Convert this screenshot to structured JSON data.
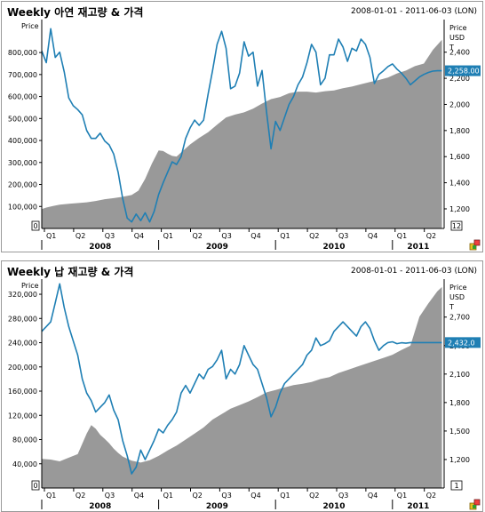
{
  "colors": {
    "price_line": "#1f7fb4",
    "inventory_fill": "#999999",
    "last_value_tag": "#1f7fb4",
    "axis": "#000000"
  },
  "chart_data": [
    {
      "type": "area",
      "title": "Weekly 아연 재고량 & 가격",
      "date_range": "2008-01-01 - 2011-06-03 (LON)",
      "left_axis_label": "Price",
      "right_axis_label_lines": [
        "Price",
        "USD",
        "T"
      ],
      "left_axis": {
        "ticks": [
          100000,
          200000,
          300000,
          400000,
          500000,
          600000,
          700000,
          800000
        ],
        "tick_labels": [
          "100,000",
          "200,000",
          "300,000",
          "400,000",
          "500,000",
          "600,000",
          "700,000",
          "800,000"
        ],
        "zero_label": "0",
        "range": [
          0,
          950000
        ]
      },
      "right_axis": {
        "ticks": [
          1200,
          1400,
          1600,
          1800,
          2000,
          2200,
          2400
        ],
        "tick_labels": [
          "1,200",
          "1,400",
          "1,600",
          "1,800",
          "2,000",
          "2,200",
          "2,400"
        ],
        "bottom_label": "12",
        "range": [
          1050,
          2650
        ]
      },
      "last_value": "2,258.00",
      "quarters": [
        "Q1",
        "Q2",
        "Q3",
        "Q4",
        "Q1",
        "Q2",
        "Q3",
        "Q4",
        "Q1",
        "Q2",
        "Q3",
        "Q4",
        "Q1",
        "Q2"
      ],
      "years": [
        "2008",
        "2009",
        "2010",
        "2011"
      ],
      "series": [
        {
          "kind": "inventory-area",
          "x": [
            0,
            2,
            5,
            8,
            12,
            17,
            20,
            24,
            28,
            32,
            36,
            40,
            43,
            46,
            49,
            52,
            54,
            56,
            58,
            60,
            63,
            66,
            70,
            74,
            78,
            82,
            86,
            90,
            94,
            98,
            102,
            106,
            110,
            114,
            118,
            122,
            126,
            130,
            134,
            138,
            142,
            146,
            150,
            154,
            158,
            162,
            166,
            170,
            174,
            178
          ],
          "values": [
            88000,
            95000,
            102000,
            108000,
            112000,
            116000,
            119000,
            125000,
            133000,
            138000,
            144000,
            152000,
            172000,
            225000,
            295000,
            355000,
            352000,
            340000,
            330000,
            327000,
            355000,
            382000,
            412000,
            438000,
            472000,
            505000,
            518000,
            528000,
            545000,
            568000,
            588000,
            598000,
            615000,
            622000,
            622000,
            618000,
            624000,
            628000,
            638000,
            645000,
            656000,
            666000,
            675000,
            686000,
            705000,
            718000,
            738000,
            750000,
            812000,
            858000
          ]
        },
        {
          "kind": "price-line",
          "x": [
            0,
            2,
            4,
            6,
            8,
            10,
            12,
            14,
            16,
            18,
            20,
            22,
            24,
            26,
            28,
            30,
            32,
            34,
            36,
            38,
            40,
            42,
            44,
            46,
            48,
            50,
            52,
            54,
            56,
            58,
            60,
            62,
            64,
            66,
            68,
            70,
            72,
            74,
            76,
            78,
            80,
            82,
            84,
            86,
            88,
            90,
            92,
            94,
            96,
            98,
            100,
            102,
            104,
            106,
            108,
            110,
            112,
            114,
            116,
            118,
            120,
            122,
            124,
            126,
            128,
            130,
            132,
            134,
            136,
            138,
            140,
            142,
            144,
            146,
            148,
            150,
            152,
            154,
            156,
            158,
            160,
            162,
            164,
            166,
            168,
            170,
            172,
            174,
            176,
            178
          ],
          "values": [
            2410,
            2320,
            2580,
            2360,
            2400,
            2250,
            2050,
            1990,
            1960,
            1920,
            1800,
            1740,
            1740,
            1780,
            1720,
            1690,
            1620,
            1480,
            1280,
            1130,
            1100,
            1160,
            1110,
            1170,
            1100,
            1180,
            1310,
            1400,
            1480,
            1560,
            1540,
            1600,
            1740,
            1820,
            1880,
            1840,
            1880,
            2080,
            2260,
            2460,
            2560,
            2430,
            2120,
            2140,
            2240,
            2480,
            2370,
            2400,
            2140,
            2260,
            1940,
            1660,
            1870,
            1800,
            1900,
            2000,
            2060,
            2150,
            2210,
            2320,
            2460,
            2400,
            2150,
            2200,
            2380,
            2380,
            2500,
            2440,
            2330,
            2430,
            2410,
            2500,
            2460,
            2360,
            2160,
            2230,
            2258,
            2290,
            2310,
            2270,
            2240,
            2200,
            2150,
            2180,
            2210,
            2230,
            2245,
            2255,
            2258,
            2258
          ]
        }
      ]
    },
    {
      "type": "area",
      "title": "Weekly 납 재고량 & 가격",
      "date_range": "2008-01-01 - 2011-06-03 (LON)",
      "left_axis_label": "Price",
      "right_axis_label_lines": [
        "Price",
        "USD",
        "T"
      ],
      "left_axis": {
        "ticks": [
          40000,
          80000,
          120000,
          160000,
          200000,
          240000,
          280000,
          320000
        ],
        "tick_labels": [
          "40,000",
          "80,000",
          "120,000",
          "160,000",
          "200,000",
          "240,000",
          "280,000",
          "320,000"
        ],
        "zero_label": "0",
        "range": [
          0,
          345000
        ]
      },
      "right_axis": {
        "ticks": [
          1200,
          1500,
          1800,
          2100,
          2400,
          2700
        ],
        "tick_labels": [
          "1,200",
          "1,500",
          "1,800",
          "2,100",
          "2,400",
          "2,700"
        ],
        "bottom_label": "1",
        "range": [
          900,
          3100
        ]
      },
      "last_value": "2,432.0",
      "quarters": [
        "Q1",
        "Q2",
        "Q3",
        "Q4",
        "Q1",
        "Q2",
        "Q3",
        "Q4",
        "Q1",
        "Q2",
        "Q3",
        "Q4",
        "Q1",
        "Q2"
      ],
      "years": [
        "2008",
        "2009",
        "2010",
        "2011"
      ],
      "series": [
        {
          "kind": "inventory-area",
          "x": [
            0,
            4,
            8,
            12,
            16,
            20,
            22,
            24,
            26,
            28,
            30,
            32,
            34,
            36,
            40,
            44,
            48,
            52,
            56,
            60,
            64,
            68,
            72,
            76,
            80,
            84,
            88,
            92,
            96,
            100,
            104,
            108,
            112,
            116,
            120,
            124,
            128,
            132,
            136,
            140,
            144,
            148,
            152,
            156,
            160,
            164,
            168,
            172,
            176,
            178
          ],
          "values": [
            48000,
            47000,
            44000,
            50000,
            56000,
            90000,
            104000,
            98000,
            88000,
            81000,
            74000,
            65000,
            58000,
            52000,
            45000,
            42000,
            46000,
            53000,
            62000,
            70000,
            80000,
            90000,
            100000,
            113000,
            122000,
            131000,
            137000,
            143000,
            150000,
            158000,
            162000,
            166000,
            170000,
            172000,
            175000,
            180000,
            183000,
            190000,
            195000,
            200000,
            205000,
            210000,
            215000,
            220000,
            228000,
            235000,
            283000,
            305000,
            325000,
            332000
          ]
        },
        {
          "kind": "price-line",
          "x": [
            0,
            2,
            4,
            6,
            8,
            10,
            12,
            14,
            16,
            18,
            20,
            22,
            24,
            26,
            28,
            30,
            32,
            34,
            36,
            38,
            40,
            42,
            44,
            46,
            48,
            50,
            52,
            54,
            56,
            58,
            60,
            62,
            64,
            66,
            68,
            70,
            72,
            74,
            76,
            78,
            80,
            82,
            84,
            86,
            88,
            90,
            92,
            94,
            96,
            98,
            100,
            102,
            104,
            106,
            108,
            110,
            112,
            114,
            116,
            118,
            120,
            122,
            124,
            126,
            128,
            130,
            132,
            134,
            136,
            138,
            140,
            142,
            144,
            146,
            148,
            150,
            152,
            154,
            156,
            158,
            160,
            162,
            164,
            166,
            168,
            170,
            172,
            174,
            176,
            178
          ],
          "values": [
            2550,
            2600,
            2650,
            2850,
            3050,
            2800,
            2600,
            2450,
            2300,
            2050,
            1900,
            1820,
            1700,
            1750,
            1800,
            1880,
            1720,
            1620,
            1400,
            1240,
            1050,
            1120,
            1300,
            1200,
            1300,
            1400,
            1520,
            1480,
            1560,
            1620,
            1700,
            1900,
            1980,
            1900,
            2000,
            2100,
            2050,
            2150,
            2180,
            2250,
            2350,
            2050,
            2150,
            2100,
            2200,
            2400,
            2300,
            2200,
            2150,
            2000,
            1850,
            1650,
            1750,
            1900,
            2000,
            2050,
            2100,
            2150,
            2200,
            2300,
            2350,
            2480,
            2400,
            2420,
            2450,
            2550,
            2600,
            2650,
            2600,
            2550,
            2500,
            2600,
            2650,
            2580,
            2450,
            2350,
            2400,
            2432,
            2440,
            2420,
            2430,
            2425,
            2432,
            2432,
            2432,
            2432,
            2432,
            2432,
            2432,
            2432
          ]
        }
      ]
    }
  ]
}
